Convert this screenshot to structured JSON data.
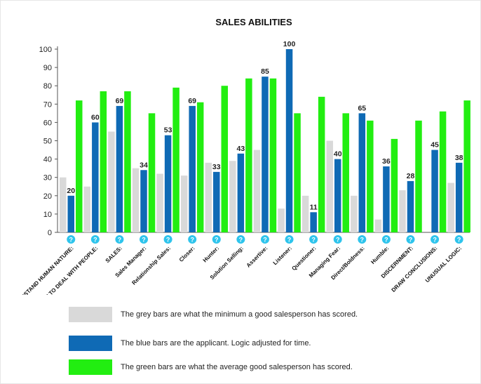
{
  "chart_data": {
    "type": "bar",
    "title": "SALES  ABILITIES",
    "categories": [
      "UNDERSTAND HUMAN NATURE:",
      "KNOW HOW TO DEAL WITH PEOPLE:",
      "SALES:",
      "Sales Manager:",
      "Relationship Sales:",
      "Closer:",
      "Hunter:",
      "Solution Selling:",
      "Assertive:",
      "Listener:",
      "Questioner:",
      "Managing Fear:",
      "Direct/Boldness:",
      "Humble:",
      "DISCERNMENT:",
      "DRAW CONCLUSIONS:",
      "UNUSUAL LOGIC:"
    ],
    "series": [
      {
        "key": "minimum",
        "color": "#d9d9d9",
        "values": [
          30,
          25,
          55,
          35,
          32,
          31,
          38,
          39,
          45,
          13,
          20,
          50,
          20,
          7,
          23,
          0,
          27
        ]
      },
      {
        "key": "applicant",
        "color": "#0f6ab5",
        "values": [
          20,
          60,
          69,
          34,
          53,
          69,
          33,
          43,
          85,
          100,
          11,
          40,
          65,
          36,
          28,
          45,
          38
        ]
      },
      {
        "key": "average",
        "color": "#22ee11",
        "values": [
          72,
          77,
          77,
          65,
          79,
          71,
          80,
          84,
          84,
          65,
          74,
          65,
          61,
          51,
          61,
          66,
          72
        ]
      }
    ],
    "data_labels_series": "applicant",
    "ylim": [
      0,
      100
    ],
    "yticks": [
      0,
      10,
      20,
      30,
      40,
      50,
      60,
      70,
      80,
      90,
      100
    ],
    "grid": false,
    "help_icon_glyph": "?",
    "help_icon_color": "#2ec4ec",
    "legend_position": "bottom"
  },
  "legend": [
    {
      "color": "#d9d9d9",
      "text": "The grey bars are what the minimum a good salesperson has scored."
    },
    {
      "color": "#0f6ab5",
      "text": "The blue bars are the applicant. Logic adjusted for time."
    },
    {
      "color": "#22ee11",
      "text": "The green bars are what the average good salesperson has scored."
    }
  ]
}
